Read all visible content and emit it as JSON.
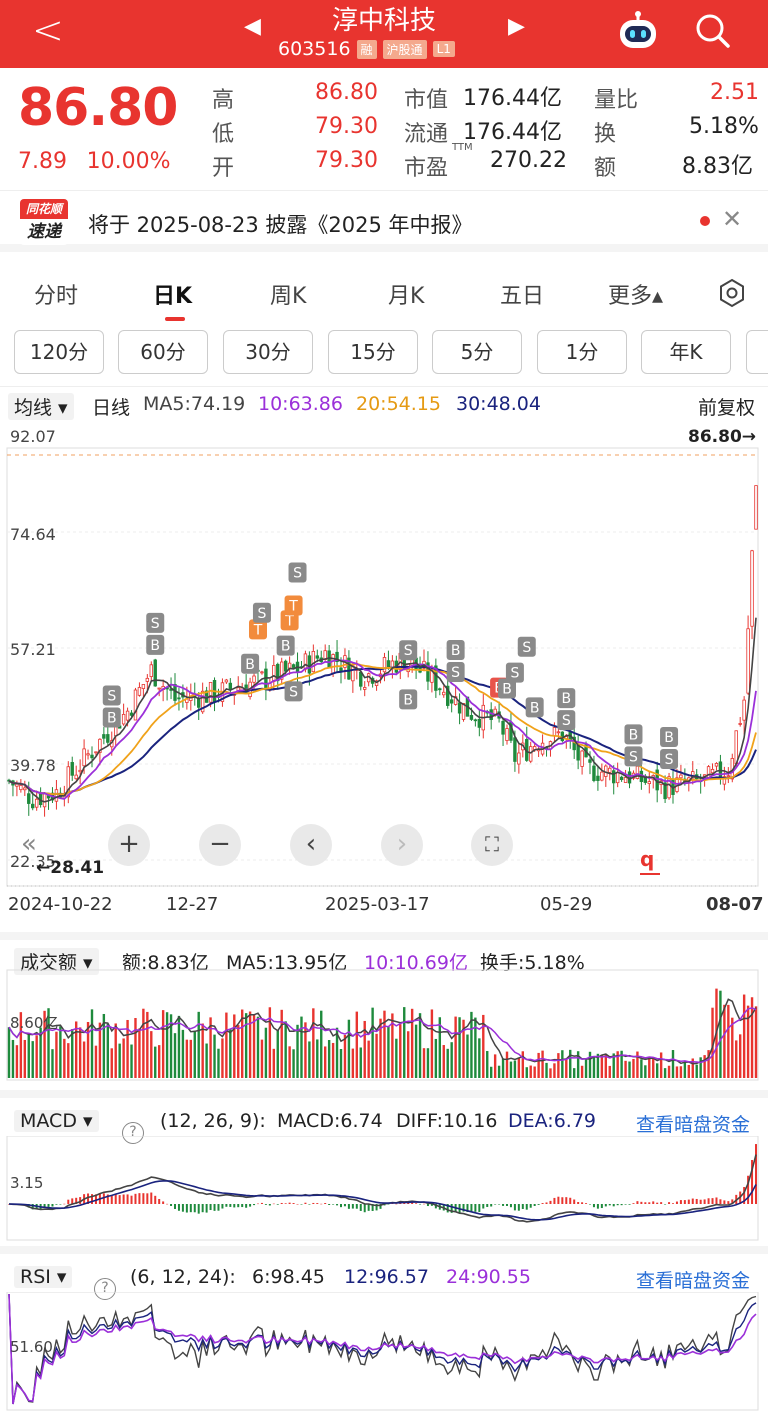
{
  "header": {
    "title": "淳中科技",
    "code": "603516",
    "tags": [
      "融",
      "沪股通",
      "L1"
    ]
  },
  "quote": {
    "price": "86.80",
    "change": "7.89",
    "change_pct": "10.00%",
    "high_label": "高",
    "high": "86.80",
    "low_label": "低",
    "low": "79.30",
    "open_label": "开",
    "open": "79.30",
    "mcap_label": "市值",
    "mcap": "176.44亿",
    "float_label": "流通",
    "float": "176.44亿",
    "pe_label": "市盈",
    "pe_sup": "TTM",
    "pe": "270.22",
    "vr_label": "量比",
    "vr": "2.51",
    "turn_label": "换",
    "turn": "5.18%",
    "amt_label": "额",
    "amt": "8.83亿"
  },
  "notice": {
    "badge_top": "同花顺",
    "badge_bottom": "速递",
    "text": "将于 2025-08-23 披露《2025 年中报》"
  },
  "tabs": [
    "分时",
    "日K",
    "周K",
    "月K",
    "五日",
    "更多▴"
  ],
  "intervals": [
    "120分",
    "60分",
    "30分",
    "15分",
    "5分",
    "1分",
    "年K"
  ],
  "ma": {
    "selector": "均线",
    "period": "日线",
    "ma5": "MA5:74.19",
    "ma10": "10:63.86",
    "ma20": "20:54.15",
    "ma30": "30:48.04",
    "adjust": "前复权"
  },
  "chart_data": {
    "type": "candlestick",
    "y_ticks": [
      "92.07",
      "74.64",
      "57.21",
      "39.78",
      "22.35"
    ],
    "y_range": [
      22.35,
      92.07
    ],
    "max_label": "86.80→",
    "min_label": "←28.41",
    "x_ticks": [
      "2024-10-22",
      "12-27",
      "2025-03-17",
      "05-29",
      "08-07"
    ],
    "trade_marks": [
      "S",
      "B",
      "S",
      "T",
      "T",
      "B",
      "S",
      "B",
      "S",
      "B",
      "S",
      "B",
      "S",
      "B",
      "S",
      "B",
      "S",
      "B",
      "S",
      "B",
      "S",
      "B",
      "S",
      "B",
      "S"
    ],
    "colors": {
      "up": "#e8342f",
      "down": "#1e8a3c",
      "ma5": "#444444",
      "ma10": "#9b30d9",
      "ma20": "#f0a21a",
      "ma30": "#1a237e"
    }
  },
  "volume": {
    "selector": "成交额",
    "amount": "额:8.83亿",
    "ma5": "MA5:13.95亿",
    "ma10": "10:10.69亿",
    "turnover": "换手:5.18%",
    "y_tick": "8.60亿"
  },
  "macd": {
    "selector": "MACD",
    "params": "(12, 26, 9):",
    "macd": "MACD:6.74",
    "diff": "DIFF:10.16",
    "dea": "DEA:6.79",
    "link": "查看暗盘资金",
    "y_tick": "3.15"
  },
  "rsi": {
    "selector": "RSI",
    "params": "(6, 12, 24):",
    "r6": "6:98.45",
    "r12": "12:96.57",
    "r24": "24:90.55",
    "link": "查看暗盘资金",
    "y_tick": "51.60"
  }
}
